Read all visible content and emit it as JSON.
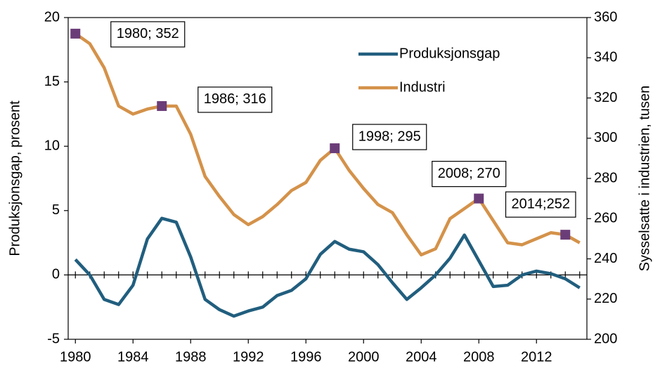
{
  "chart_data": {
    "type": "line",
    "x": [
      1980,
      1981,
      1982,
      1983,
      1984,
      1985,
      1986,
      1987,
      1988,
      1989,
      1990,
      1991,
      1992,
      1993,
      1994,
      1995,
      1996,
      1997,
      1998,
      1999,
      2000,
      2001,
      2002,
      2003,
      2004,
      2005,
      2006,
      2007,
      2008,
      2009,
      2010,
      2011,
      2012,
      2013,
      2014,
      2015
    ],
    "series": [
      {
        "name": "Produksjonsgap",
        "color": "#215e7e",
        "values": [
          1.2,
          0,
          -1.9,
          -2.3,
          -0.8,
          2.8,
          4.4,
          4.1,
          1.4,
          -1.9,
          -2.7,
          -3.2,
          -2.8,
          -2.5,
          -1.6,
          -1.2,
          -0.3,
          1.6,
          2.6,
          2.0,
          1.8,
          0.8,
          -0.6,
          -1.9,
          -1.0,
          0,
          1.3,
          3.1,
          1.1,
          -0.9,
          -0.8,
          0,
          0.3,
          0.1,
          -0.3,
          -1.0
        ]
      },
      {
        "name": "Industri",
        "color": "#d4924a",
        "axis": "y2",
        "values": [
          352,
          347,
          335,
          316,
          312,
          314.5,
          316,
          316,
          302,
          281,
          271,
          262,
          257,
          261,
          267,
          274,
          278,
          289,
          295,
          284,
          275,
          267,
          263,
          252,
          242,
          245,
          260,
          265,
          270,
          259,
          248,
          247,
          250,
          253,
          252,
          248
        ]
      }
    ],
    "annotations": [
      {
        "text": "1980; 352",
        "x": 1980,
        "y": 352
      },
      {
        "text": "1986; 316",
        "x": 1986,
        "y": 316
      },
      {
        "text": "1998; 295",
        "x": 1998,
        "y": 295
      },
      {
        "text": "2008; 270",
        "x": 2008,
        "y": 270
      },
      {
        "text": "2014;252",
        "x": 2014,
        "y": 252
      }
    ],
    "marker_color": "#6b3d78",
    "ylabel": "Produksjonsgap, prosent",
    "y2label": "Sysselsatte i industrien, tusen",
    "xlim": [
      1979.5,
      2015.5
    ],
    "xticks": [
      1980,
      1984,
      1988,
      1992,
      1996,
      2000,
      2004,
      2008,
      2012
    ],
    "ylim": [
      -5,
      20
    ],
    "yticks": [
      -5,
      0,
      5,
      10,
      15,
      20
    ],
    "y2lim": [
      200,
      360
    ],
    "y2ticks": [
      200,
      220,
      240,
      260,
      280,
      300,
      320,
      340,
      360
    ],
    "legend": "upper right"
  }
}
